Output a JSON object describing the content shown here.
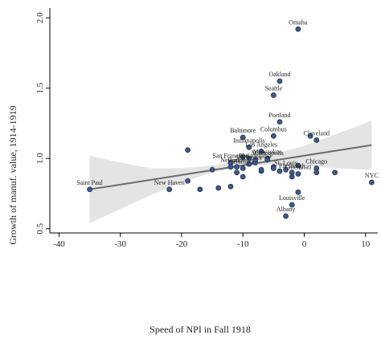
{
  "chart_data": {
    "type": "scatter",
    "title": "",
    "xlabel": "Speed of NPI in Fall 1918",
    "ylabel": "Growth of manuf. value, 1914-1919",
    "xlim": [
      -41.5,
      12
    ],
    "ylim": [
      0.47,
      2.07
    ],
    "xticks": [
      -40,
      -30,
      -20,
      -10,
      0,
      10
    ],
    "yticks": [
      0.5,
      1.0,
      1.5,
      2.0
    ],
    "ytick_labels": [
      "0.5",
      "1.0",
      "1.5",
      "2.0"
    ],
    "grid": false,
    "legend": "none",
    "colors": {
      "point_fill": "#3e5a8a",
      "point_stroke": "#1e2d4a",
      "fit_line": "#6b6b6b",
      "ci_band": "#e4e4e4"
    },
    "fit_line": {
      "x": [
        -35,
        11
      ],
      "y": [
        0.78,
        1.095
      ]
    },
    "confidence_band": {
      "x": [
        -35,
        -30,
        -25,
        -20,
        -15,
        -10,
        -5,
        0,
        5,
        10,
        11
      ],
      "lower": [
        0.54,
        0.64,
        0.74,
        0.83,
        0.9,
        0.94,
        0.96,
        0.95,
        0.93,
        0.92,
        0.92
      ],
      "upper": [
        1.02,
        0.97,
        0.93,
        0.93,
        0.95,
        0.99,
        1.03,
        1.09,
        1.17,
        1.25,
        1.27
      ]
    },
    "points": [
      {
        "x": -1,
        "y": 1.92,
        "label": "Omaha"
      },
      {
        "x": -4,
        "y": 1.55,
        "label": "Oakland"
      },
      {
        "x": -5,
        "y": 1.45,
        "label": "Seattle"
      },
      {
        "x": -4,
        "y": 1.26,
        "label": "Portland"
      },
      {
        "x": -10,
        "y": 1.15,
        "label": "Baltimore"
      },
      {
        "x": -5,
        "y": 1.16,
        "label": "Columbus"
      },
      {
        "x": 2,
        "y": 1.13,
        "label": "Cleveland"
      },
      {
        "x": -9,
        "y": 1.08,
        "label": "Indianapolis"
      },
      {
        "x": -7,
        "y": 1.05,
        "label": "Los Angeles"
      },
      {
        "x": -6,
        "y": 1.0,
        "label": "Milwaukee"
      },
      {
        "x": -6,
        "y": 0.99,
        "label": "Minneapolis"
      },
      {
        "x": -12,
        "y": 0.97,
        "label": "San Francisco"
      },
      {
        "x": -8,
        "y": 0.97,
        "label": "Philadelphia"
      },
      {
        "x": -9,
        "y": 0.96,
        "label": "Rochester"
      },
      {
        "x": -11,
        "y": 0.94,
        "label": "Boston"
      },
      {
        "x": -12,
        "y": 0.94,
        "label": "Newark"
      },
      {
        "x": -10,
        "y": 0.93,
        "label": "Buffalo"
      },
      {
        "x": -3,
        "y": 0.92,
        "label": "St. Louis"
      },
      {
        "x": -2,
        "y": 0.9,
        "label": "Pittsburgh"
      },
      {
        "x": 2,
        "y": 0.93,
        "label": "Chicago"
      },
      {
        "x": -1,
        "y": 0.89,
        "label": "Cincinnati"
      },
      {
        "x": -35,
        "y": 0.78,
        "label": "Saint Paul"
      },
      {
        "x": -22,
        "y": 0.78,
        "label": "New Haven"
      },
      {
        "x": 11,
        "y": 0.83,
        "label": "NYC"
      },
      {
        "x": -2,
        "y": 0.67,
        "label": "Louisville"
      },
      {
        "x": -3,
        "y": 0.59,
        "label": "Albany"
      },
      {
        "x": -19,
        "y": 1.06,
        "label": ""
      },
      {
        "x": -15,
        "y": 0.92,
        "label": ""
      },
      {
        "x": -14,
        "y": 0.79,
        "label": ""
      },
      {
        "x": -17,
        "y": 0.78,
        "label": ""
      },
      {
        "x": -19,
        "y": 0.84,
        "label": ""
      },
      {
        "x": -12,
        "y": 0.8,
        "label": ""
      },
      {
        "x": -10,
        "y": 0.87,
        "label": ""
      },
      {
        "x": -11,
        "y": 0.9,
        "label": ""
      },
      {
        "x": -7,
        "y": 0.91,
        "label": ""
      },
      {
        "x": -7,
        "y": 0.92,
        "label": ""
      },
      {
        "x": -5,
        "y": 0.94,
        "label": ""
      },
      {
        "x": -10,
        "y": 1.01,
        "label": ""
      },
      {
        "x": -8,
        "y": 0.99,
        "label": ""
      },
      {
        "x": -5,
        "y": 0.93,
        "label": ""
      },
      {
        "x": 1,
        "y": 1.16,
        "label": ""
      },
      {
        "x": 2,
        "y": 0.9,
        "label": ""
      },
      {
        "x": 5,
        "y": 0.9,
        "label": ""
      },
      {
        "x": -1,
        "y": 0.76,
        "label": ""
      },
      {
        "x": -2,
        "y": 0.87,
        "label": ""
      },
      {
        "x": -4,
        "y": 0.91,
        "label": ""
      },
      {
        "x": -1,
        "y": 0.95,
        "label": ""
      },
      {
        "x": -9,
        "y": 1.0,
        "label": ""
      }
    ]
  }
}
